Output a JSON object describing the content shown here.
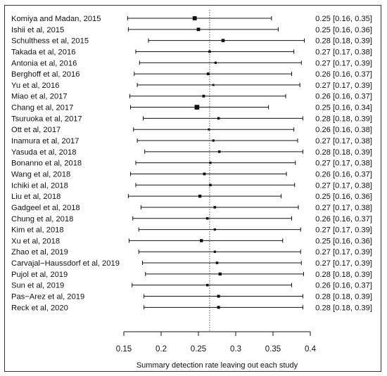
{
  "chart_data": {
    "type": "forest",
    "xlabel": "Summary detection rate leaving out each study",
    "xlim": [
      0.15,
      0.4
    ],
    "ticks": [
      0.15,
      0.2,
      0.25,
      0.3,
      0.35,
      0.4
    ],
    "tick_labels": [
      "0.15",
      "0.2",
      "0.25",
      "0.3",
      "0.35",
      "0.4"
    ],
    "reference_line": 0.265,
    "studies": [
      {
        "label": "Komiya and Madan, 2015",
        "est": 0.245,
        "lo": 0.155,
        "hi": 0.348,
        "ci_text": "0.25 [0.16, 0.35]",
        "weight": 1.6
      },
      {
        "label": "Ishii et al, 2015",
        "est": 0.25,
        "lo": 0.156,
        "hi": 0.357,
        "ci_text": "0.25 [0.16, 0.36]",
        "weight": 1.1
      },
      {
        "label": "Schulthess et al, 2015",
        "est": 0.283,
        "lo": 0.183,
        "hi": 0.392,
        "ci_text": "0.28 [0.18, 0.39]",
        "weight": 1.0
      },
      {
        "label": "Takada et al, 2016",
        "est": 0.265,
        "lo": 0.166,
        "hi": 0.378,
        "ci_text": "0.27 [0.17, 0.38]",
        "weight": 0.6
      },
      {
        "label": "Antonia et al, 2016",
        "est": 0.273,
        "lo": 0.171,
        "hi": 0.388,
        "ci_text": "0.27 [0.17, 0.39]",
        "weight": 0.5
      },
      {
        "label": "Berghoff et al, 2016",
        "est": 0.263,
        "lo": 0.164,
        "hi": 0.375,
        "ci_text": "0.26 [0.16, 0.37]",
        "weight": 0.7
      },
      {
        "label": "Yu et al, 2016",
        "est": 0.27,
        "lo": 0.168,
        "hi": 0.386,
        "ci_text": "0.27 [0.17, 0.39]",
        "weight": 0.4
      },
      {
        "label": "Miao et al, 2017",
        "est": 0.257,
        "lo": 0.158,
        "hi": 0.367,
        "ci_text": "0.26 [0.16, 0.37]",
        "weight": 0.7
      },
      {
        "label": "Chang et al, 2017",
        "est": 0.248,
        "lo": 0.159,
        "hi": 0.344,
        "ci_text": "0.25 [0.16, 0.34]",
        "weight": 2.1
      },
      {
        "label": "Tsuruoka et al, 2017",
        "est": 0.277,
        "lo": 0.176,
        "hi": 0.39,
        "ci_text": "0.28 [0.18, 0.39]",
        "weight": 0.6
      },
      {
        "label": "Ott et al, 2017",
        "est": 0.264,
        "lo": 0.163,
        "hi": 0.378,
        "ci_text": "0.26 [0.16, 0.38]",
        "weight": 0.4
      },
      {
        "label": "Inamura et al, 2017",
        "est": 0.27,
        "lo": 0.168,
        "hi": 0.383,
        "ci_text": "0.27 [0.17, 0.38]",
        "weight": 0.5
      },
      {
        "label": "Yasuda et al, 2018",
        "est": 0.278,
        "lo": 0.178,
        "hi": 0.39,
        "ci_text": "0.28 [0.18, 0.39]",
        "weight": 0.6
      },
      {
        "label": "Bonanno et al, 2018",
        "est": 0.266,
        "lo": 0.166,
        "hi": 0.38,
        "ci_text": "0.27 [0.17, 0.38]",
        "weight": 0.5
      },
      {
        "label": "Wang et al, 2018",
        "est": 0.258,
        "lo": 0.159,
        "hi": 0.368,
        "ci_text": "0.26 [0.16, 0.37]",
        "weight": 0.7
      },
      {
        "label": "Ichiki et al, 2018",
        "est": 0.266,
        "lo": 0.166,
        "hi": 0.379,
        "ci_text": "0.27 [0.17, 0.38]",
        "weight": 0.6
      },
      {
        "label": "Liu et al, 2018",
        "est": 0.252,
        "lo": 0.156,
        "hi": 0.361,
        "ci_text": "0.25 [0.16, 0.36]",
        "weight": 0.9
      },
      {
        "label": "Gadgeel et al, 2018",
        "est": 0.272,
        "lo": 0.173,
        "hi": 0.384,
        "ci_text": "0.27 [0.17, 0.38]",
        "weight": 0.6
      },
      {
        "label": "Chung et al, 2018",
        "est": 0.262,
        "lo": 0.162,
        "hi": 0.375,
        "ci_text": "0.26 [0.16, 0.37]",
        "weight": 0.6
      },
      {
        "label": "Kim et al, 2018",
        "est": 0.272,
        "lo": 0.17,
        "hi": 0.387,
        "ci_text": "0.27 [0.17, 0.39]",
        "weight": 0.5
      },
      {
        "label": "Xu et al, 2018",
        "est": 0.254,
        "lo": 0.157,
        "hi": 0.363,
        "ci_text": "0.25 [0.16, 0.36]",
        "weight": 0.9
      },
      {
        "label": "Zhao et al, 2019",
        "est": 0.272,
        "lo": 0.17,
        "hi": 0.387,
        "ci_text": "0.27 [0.17, 0.39]",
        "weight": 0.5
      },
      {
        "label": "Carvajal−Haussdorf et al, 2019",
        "est": 0.275,
        "lo": 0.175,
        "hi": 0.388,
        "ci_text": "0.27 [0.17, 0.39]",
        "weight": 0.6
      },
      {
        "label": "Pujol et al, 2019",
        "est": 0.279,
        "lo": 0.179,
        "hi": 0.391,
        "ci_text": "0.28 [0.18, 0.39]",
        "weight": 0.9
      },
      {
        "label": "Sun et al, 2019",
        "est": 0.262,
        "lo": 0.161,
        "hi": 0.375,
        "ci_text": "0.26 [0.16, 0.37]",
        "weight": 0.6
      },
      {
        "label": "Pas−Arez et al, 2019",
        "est": 0.277,
        "lo": 0.177,
        "hi": 0.39,
        "ci_text": "0.28 [0.18, 0.39]",
        "weight": 0.8
      },
      {
        "label": "Reck et al, 2020",
        "est": 0.277,
        "lo": 0.177,
        "hi": 0.39,
        "ci_text": "0.28 [0.18, 0.39]",
        "weight": 0.8
      }
    ]
  }
}
